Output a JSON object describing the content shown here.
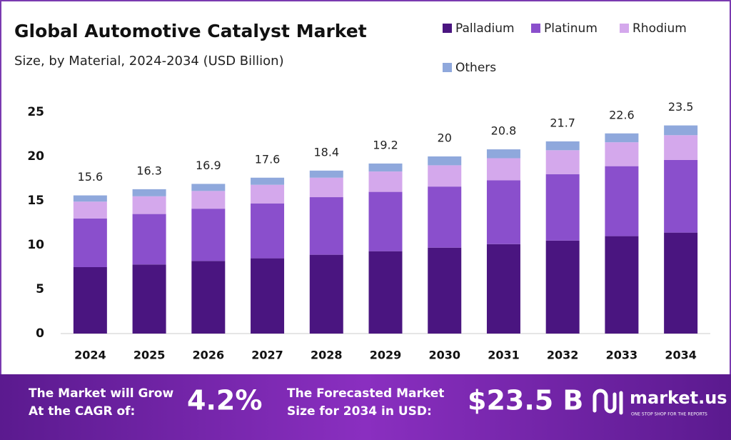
{
  "chart_data": {
    "type": "stacked_bar",
    "title": "Global Automotive Catalyst Market",
    "subtitle": "Size, by Material, 2024-2034 (USD Billion)",
    "categories": [
      "2024",
      "2025",
      "2026",
      "2027",
      "2028",
      "2029",
      "2030",
      "2031",
      "2032",
      "2033",
      "2034"
    ],
    "series": [
      {
        "name": "Palladium",
        "color": "#4a1580",
        "values": [
          7.5,
          7.8,
          8.2,
          8.5,
          8.9,
          9.3,
          9.7,
          10.1,
          10.5,
          11.0,
          11.4
        ]
      },
      {
        "name": "Platinum",
        "color": "#8a4fcc",
        "values": [
          5.5,
          5.7,
          5.9,
          6.2,
          6.5,
          6.7,
          6.9,
          7.2,
          7.5,
          7.9,
          8.2
        ]
      },
      {
        "name": "Rhodium",
        "color": "#d4a8ec",
        "values": [
          1.9,
          2.0,
          2.0,
          2.1,
          2.2,
          2.3,
          2.4,
          2.5,
          2.7,
          2.7,
          2.8
        ]
      },
      {
        "name": "Others",
        "color": "#8fa8dc",
        "values": [
          0.7,
          0.8,
          0.8,
          0.8,
          0.8,
          0.9,
          1.0,
          1.0,
          1.0,
          1.0,
          1.1
        ]
      }
    ],
    "totals": [
      15.6,
      16.3,
      16.9,
      17.6,
      18.4,
      19.2,
      20.0,
      20.8,
      21.7,
      22.6,
      23.5
    ],
    "ylim": [
      0,
      25
    ],
    "yticks": [
      0,
      5,
      10,
      15,
      20,
      25
    ],
    "grid": false
  },
  "footer": {
    "cagr_text": [
      "The Market will Grow",
      "At the CAGR of:"
    ],
    "cagr_value": "4.2%",
    "size_text": [
      "The Forecasted Market",
      "Size for 2034 in USD:"
    ],
    "size_value": "$23.5 B",
    "logo": "market.us",
    "tagline": "ONE STOP SHOP FOR THE REPORTS"
  }
}
